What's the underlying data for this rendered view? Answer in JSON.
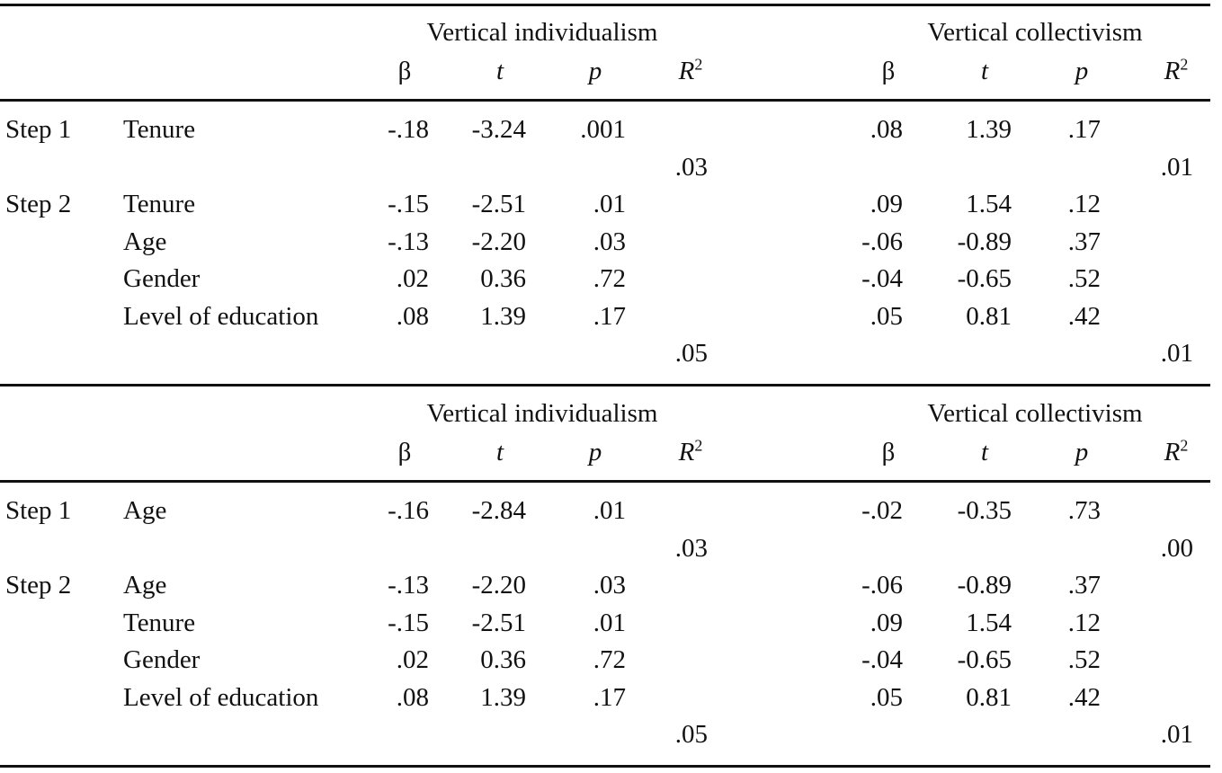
{
  "panels": [
    {
      "groups": [
        "Vertical individualism",
        "Vertical collectivism"
      ],
      "stat_headers": [
        "β",
        "t",
        "p",
        "R",
        "β",
        "t",
        "p",
        "R"
      ],
      "r_exp": "2",
      "rows": [
        {
          "step": "Step 1",
          "var": "Tenure",
          "vi": [
            "-.18",
            "-3.24",
            ".001",
            ""
          ],
          "vc": [
            ".08",
            "1.39",
            ".17",
            ""
          ]
        },
        {
          "step": "",
          "var": "",
          "vi": [
            "",
            "",
            "",
            ".03"
          ],
          "vc": [
            "",
            "",
            "",
            ".01"
          ]
        },
        {
          "step": "Step 2",
          "var": "Tenure",
          "vi": [
            "-.15",
            "-2.51",
            ".01",
            ""
          ],
          "vc": [
            ".09",
            "1.54",
            ".12",
            ""
          ]
        },
        {
          "step": "",
          "var": "Age",
          "vi": [
            "-.13",
            "-2.20",
            ".03",
            ""
          ],
          "vc": [
            "-.06",
            "-0.89",
            ".37",
            ""
          ]
        },
        {
          "step": "",
          "var": "Gender",
          "vi": [
            ".02",
            "0.36",
            ".72",
            ""
          ],
          "vc": [
            "-.04",
            "-0.65",
            ".52",
            ""
          ]
        },
        {
          "step": "",
          "var": "Level of education",
          "vi": [
            ".08",
            "1.39",
            ".17",
            ""
          ],
          "vc": [
            ".05",
            "0.81",
            ".42",
            ""
          ]
        },
        {
          "step": "",
          "var": "",
          "vi": [
            "",
            "",
            "",
            ".05"
          ],
          "vc": [
            "",
            "",
            "",
            ".01"
          ]
        }
      ]
    },
    {
      "groups": [
        "Vertical individualism",
        "Vertical collectivism"
      ],
      "stat_headers": [
        "β",
        "t",
        "p",
        "R",
        "β",
        "t",
        "p",
        "R"
      ],
      "r_exp": "2",
      "rows": [
        {
          "step": "Step 1",
          "var": "Age",
          "vi": [
            "-.16",
            "-2.84",
            ".01",
            ""
          ],
          "vc": [
            "-.02",
            "-0.35",
            ".73",
            ""
          ]
        },
        {
          "step": "",
          "var": "",
          "vi": [
            "",
            "",
            "",
            ".03"
          ],
          "vc": [
            "",
            "",
            "",
            ".00"
          ]
        },
        {
          "step": "Step 2",
          "var": "Age",
          "vi": [
            "-.13",
            "-2.20",
            ".03",
            ""
          ],
          "vc": [
            "-.06",
            "-0.89",
            ".37",
            ""
          ]
        },
        {
          "step": "",
          "var": "Tenure",
          "vi": [
            "-.15",
            "-2.51",
            ".01",
            ""
          ],
          "vc": [
            ".09",
            "1.54",
            ".12",
            ""
          ]
        },
        {
          "step": "",
          "var": "Gender",
          "vi": [
            ".02",
            "0.36",
            ".72",
            ""
          ],
          "vc": [
            "-.04",
            "-0.65",
            ".52",
            ""
          ]
        },
        {
          "step": "",
          "var": "Level of education",
          "vi": [
            ".08",
            "1.39",
            ".17",
            ""
          ],
          "vc": [
            ".05",
            "0.81",
            ".42",
            ""
          ]
        },
        {
          "step": "",
          "var": "",
          "vi": [
            "",
            "",
            "",
            ".05"
          ],
          "vc": [
            "",
            "",
            "",
            ".01"
          ]
        }
      ]
    }
  ]
}
